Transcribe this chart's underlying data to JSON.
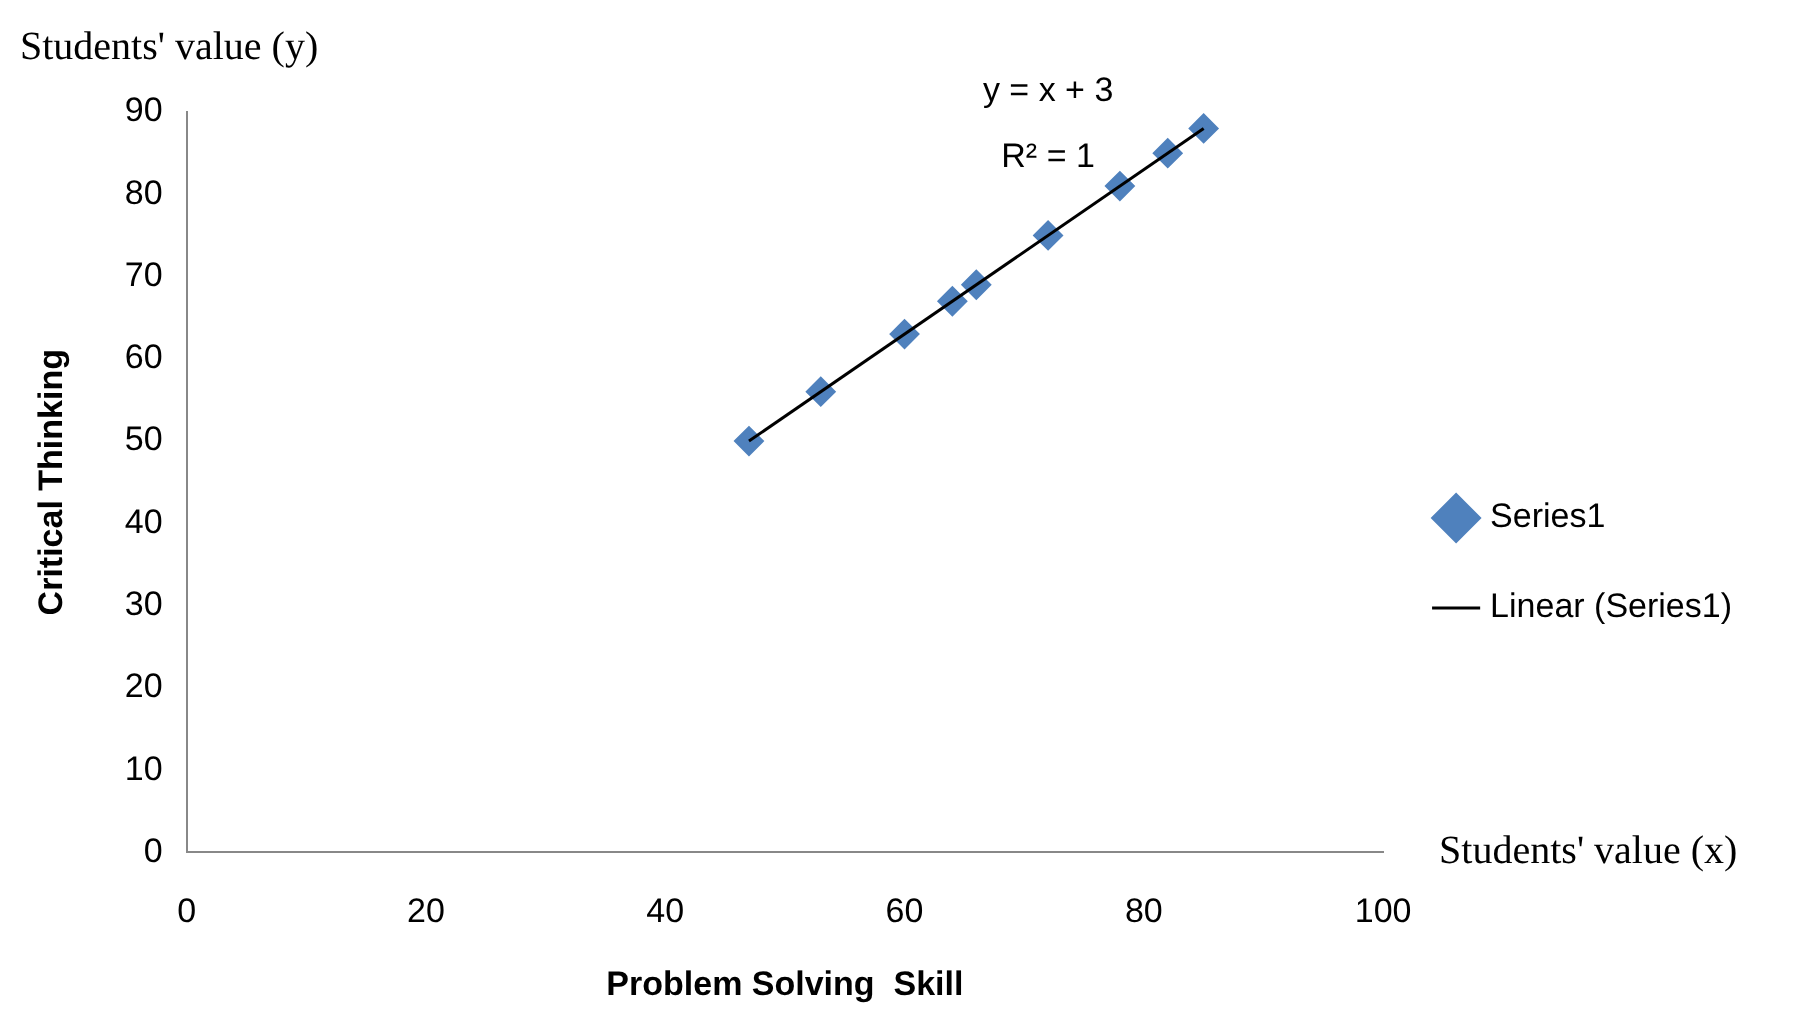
{
  "chart_data": {
    "type": "scatter",
    "xlabel": "Problem Solving  Skill",
    "ylabel": "Critical Thinking",
    "x": [
      47,
      53,
      60,
      64,
      66,
      72,
      78,
      82,
      85
    ],
    "series": [
      {
        "name": "Series1",
        "color": "#4f81bd",
        "values": [
          50,
          56,
          63,
          67,
          69,
          75,
          81,
          85,
          88
        ],
        "marker": "diamond"
      },
      {
        "name": "Linear (Series1)",
        "type": "line",
        "color": "#000000",
        "x": [
          47,
          85
        ],
        "values": [
          50,
          88
        ],
        "marker": "none"
      }
    ],
    "xlim": [
      0,
      100
    ],
    "xticks": [
      0,
      20,
      40,
      60,
      80,
      100
    ],
    "ylim": [
      0,
      90
    ],
    "yticks": [
      0,
      10,
      20,
      30,
      40,
      50,
      60,
      70,
      80,
      90
    ],
    "grid": false,
    "legend": "right",
    "annotations": [
      "Students' value (y)",
      "Students' value (x)",
      "y = x + 3",
      "R² = 1"
    ]
  }
}
